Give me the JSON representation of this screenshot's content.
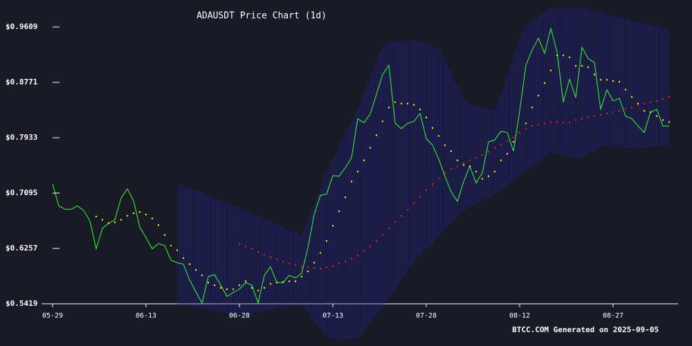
{
  "chart_data": {
    "type": "line",
    "title": "ADAUSDT Price Chart (1d)",
    "footer": "BTCC.COM Generated on 2025-09-05",
    "x": [
      "05-29",
      "05-30",
      "05-31",
      "06-01",
      "06-02",
      "06-03",
      "06-04",
      "06-05",
      "06-06",
      "06-07",
      "06-08",
      "06-09",
      "06-10",
      "06-11",
      "06-12",
      "06-13",
      "06-14",
      "06-15",
      "06-16",
      "06-17",
      "06-18",
      "06-19",
      "06-20",
      "06-21",
      "06-22",
      "06-23",
      "06-24",
      "06-25",
      "06-26",
      "06-27",
      "06-28",
      "06-29",
      "06-30",
      "07-01",
      "07-02",
      "07-03",
      "07-04",
      "07-05",
      "07-06",
      "07-07",
      "07-08",
      "07-09",
      "07-10",
      "07-11",
      "07-12",
      "07-13",
      "07-14",
      "07-15",
      "07-16",
      "07-17",
      "07-18",
      "07-19",
      "07-20",
      "07-21",
      "07-22",
      "07-23",
      "07-24",
      "07-25",
      "07-26",
      "07-27",
      "07-28",
      "07-29",
      "07-30",
      "07-31",
      "08-01",
      "08-02",
      "08-03",
      "08-04",
      "08-05",
      "08-06",
      "08-07",
      "08-08",
      "08-09",
      "08-10",
      "08-11",
      "08-12",
      "08-13",
      "08-14",
      "08-15",
      "08-16",
      "08-17",
      "08-18",
      "08-19",
      "08-20",
      "08-21",
      "08-22",
      "08-23",
      "08-24",
      "08-25",
      "08-26",
      "08-27",
      "08-28",
      "08-29",
      "08-30",
      "08-31",
      "09-01",
      "09-02",
      "09-03",
      "09-04",
      "09-05"
    ],
    "xticks": [
      "05-29",
      "06-13",
      "06-28",
      "07-13",
      "07-28",
      "08-12",
      "08-27"
    ],
    "ylim": [
      0.5419,
      0.9609
    ],
    "yticks": [
      {
        "value": 0.5419,
        "label": "$0.5419"
      },
      {
        "value": 0.6257,
        "label": "$0.6257"
      },
      {
        "value": 0.7095,
        "label": "$0.7095"
      },
      {
        "value": 0.7933,
        "label": "$0.7933"
      },
      {
        "value": 0.8771,
        "label": "$0.8771"
      },
      {
        "value": 0.9609,
        "label": "$0.9609"
      }
    ],
    "band": {
      "color": "#22228a",
      "upper": [
        null,
        null,
        null,
        null,
        null,
        null,
        null,
        null,
        null,
        null,
        null,
        null,
        null,
        null,
        null,
        null,
        null,
        null,
        null,
        null,
        0.724,
        0.721,
        0.717,
        0.713,
        0.71,
        0.706,
        0.702,
        0.699,
        0.695,
        0.691,
        0.688,
        0.683,
        0.679,
        0.675,
        0.671,
        0.667,
        0.662,
        0.658,
        0.654,
        0.65,
        0.646,
        0.669,
        0.693,
        0.716,
        0.74,
        0.761,
        0.78,
        0.799,
        0.817,
        0.837,
        0.86,
        0.884,
        0.908,
        0.931,
        0.939,
        0.94,
        0.94,
        0.941,
        0.941,
        0.938,
        0.935,
        0.932,
        0.929,
        0.91,
        0.891,
        0.872,
        0.853,
        0.844,
        0.842,
        0.839,
        0.837,
        0.834,
        0.859,
        0.888,
        0.916,
        0.944,
        0.963,
        0.969,
        0.976,
        0.983,
        0.989,
        0.99,
        0.99,
        0.991,
        0.991,
        0.99,
        0.988,
        0.985,
        0.983,
        0.98,
        0.978,
        0.976,
        0.973,
        0.971,
        0.969,
        0.966,
        0.964,
        0.961,
        0.958,
        0.956
      ],
      "lower": [
        null,
        null,
        null,
        null,
        null,
        null,
        null,
        null,
        null,
        null,
        null,
        null,
        null,
        null,
        null,
        null,
        null,
        null,
        null,
        null,
        0.541,
        0.539,
        0.538,
        0.536,
        0.535,
        0.533,
        0.531,
        0.53,
        0.528,
        0.527,
        0.525,
        0.527,
        0.528,
        0.53,
        0.531,
        0.533,
        0.535,
        0.536,
        0.538,
        0.539,
        0.541,
        0.529,
        0.517,
        0.505,
        0.493,
        0.488,
        0.488,
        0.488,
        0.488,
        0.49,
        0.502,
        0.514,
        0.525,
        0.537,
        0.55,
        0.564,
        0.579,
        0.593,
        0.606,
        0.615,
        0.625,
        0.634,
        0.645,
        0.655,
        0.664,
        0.676,
        0.681,
        0.689,
        0.694,
        0.699,
        0.703,
        0.708,
        0.715,
        0.722,
        0.729,
        0.736,
        0.743,
        0.75,
        0.757,
        0.764,
        0.771,
        0.769,
        0.767,
        0.764,
        0.762,
        0.763,
        0.768,
        0.774,
        0.78,
        0.782,
        0.781,
        0.779,
        0.778,
        0.777,
        0.777,
        0.778,
        0.779,
        0.78,
        0.781,
        0.782
      ]
    },
    "series": [
      {
        "style": "line",
        "color": "#33ff33",
        "values": [
          0.723,
          0.69,
          0.685,
          0.685,
          0.69,
          0.683,
          0.667,
          0.625,
          0.656,
          0.664,
          0.669,
          0.702,
          0.716,
          0.698,
          0.658,
          0.642,
          0.625,
          0.633,
          0.63,
          0.608,
          0.604,
          0.602,
          0.578,
          0.56,
          0.543,
          0.583,
          0.586,
          0.57,
          0.553,
          0.559,
          0.564,
          0.574,
          0.57,
          0.543,
          0.585,
          0.598,
          0.574,
          0.574,
          0.585,
          0.581,
          0.588,
          0.627,
          0.677,
          0.706,
          0.708,
          0.736,
          0.735,
          0.748,
          0.763,
          0.822,
          0.816,
          0.829,
          0.859,
          0.889,
          0.903,
          0.815,
          0.807,
          0.815,
          0.818,
          0.83,
          0.792,
          0.782,
          0.761,
          0.735,
          0.711,
          0.697,
          0.727,
          0.75,
          0.725,
          0.74,
          0.787,
          0.79,
          0.803,
          0.801,
          0.773,
          0.834,
          0.903,
          0.926,
          0.944,
          0.921,
          0.959,
          0.923,
          0.847,
          0.882,
          0.854,
          0.93,
          0.913,
          0.907,
          0.836,
          0.866,
          0.849,
          0.853,
          0.826,
          0.822,
          0.811,
          0.801,
          0.832,
          0.836,
          0.811,
          0.811
        ]
      },
      {
        "style": "dots",
        "color": "#ffff00",
        "values": [
          null,
          null,
          null,
          null,
          null,
          null,
          null,
          0.674,
          0.669,
          0.664,
          0.665,
          0.669,
          0.675,
          0.679,
          0.681,
          0.677,
          0.671,
          0.661,
          0.646,
          0.63,
          0.623,
          0.611,
          0.602,
          0.593,
          0.585,
          0.574,
          0.57,
          0.566,
          0.564,
          0.564,
          0.57,
          0.576,
          0.566,
          0.562,
          0.566,
          0.572,
          0.574,
          0.575,
          0.576,
          0.576,
          0.583,
          0.591,
          0.604,
          0.619,
          0.637,
          0.66,
          0.682,
          0.703,
          0.727,
          0.742,
          0.759,
          0.778,
          0.797,
          0.818,
          0.839,
          0.847,
          0.845,
          0.845,
          0.843,
          0.836,
          0.824,
          0.808,
          0.796,
          0.782,
          0.773,
          0.759,
          0.752,
          0.75,
          0.742,
          0.731,
          0.735,
          0.742,
          0.759,
          0.769,
          0.787,
          0.801,
          0.815,
          0.839,
          0.857,
          0.876,
          0.895,
          0.918,
          0.918,
          0.915,
          0.902,
          0.902,
          0.9,
          0.889,
          0.881,
          0.881,
          0.879,
          0.878,
          0.866,
          0.855,
          0.845,
          0.834,
          0.832,
          0.826,
          0.82,
          0.817
        ]
      },
      {
        "style": "dots",
        "color": "#ee2222",
        "values": [
          null,
          null,
          null,
          null,
          null,
          null,
          null,
          null,
          null,
          null,
          null,
          null,
          null,
          null,
          null,
          null,
          null,
          null,
          null,
          null,
          null,
          null,
          null,
          null,
          null,
          null,
          null,
          null,
          null,
          null,
          0.633,
          0.629,
          0.625,
          0.62,
          0.616,
          0.612,
          0.609,
          0.606,
          0.603,
          0.601,
          0.598,
          0.597,
          0.596,
          0.595,
          0.597,
          0.599,
          0.603,
          0.606,
          0.61,
          0.615,
          0.622,
          0.629,
          0.637,
          0.646,
          0.656,
          0.666,
          0.675,
          0.684,
          0.694,
          0.704,
          0.714,
          0.723,
          0.732,
          0.74,
          0.746,
          0.75,
          0.755,
          0.759,
          0.763,
          0.767,
          0.772,
          0.778,
          0.783,
          0.788,
          0.794,
          0.801,
          0.807,
          0.811,
          0.813,
          0.815,
          0.817,
          0.817,
          0.816,
          0.817,
          0.82,
          0.822,
          0.824,
          0.826,
          0.828,
          0.83,
          0.832,
          0.834,
          0.837,
          0.839,
          0.843,
          0.845,
          0.847,
          0.849,
          0.852,
          0.855
        ]
      }
    ]
  }
}
